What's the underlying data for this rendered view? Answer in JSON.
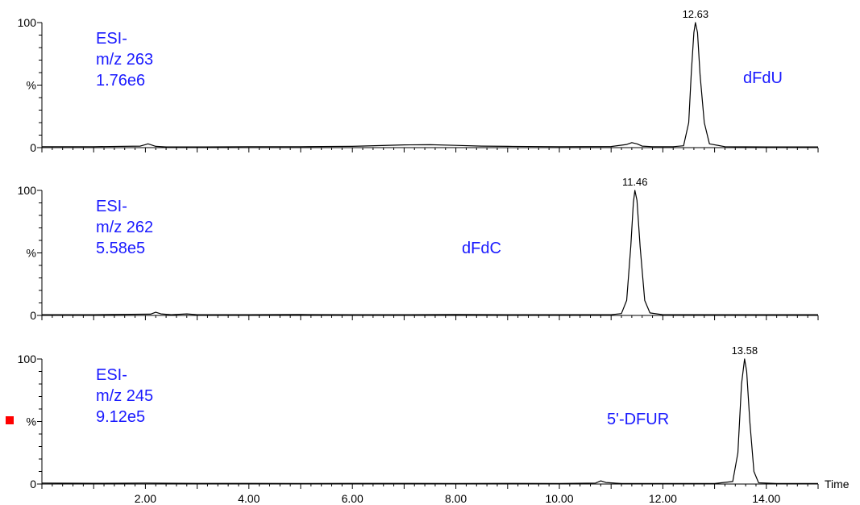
{
  "chart_data": {
    "type": "line",
    "x_axis": {
      "label": "Time",
      "xlim": [
        0,
        15
      ],
      "ticks": [
        2,
        4,
        6,
        8,
        10,
        12,
        14
      ],
      "tick_labels": [
        "2.00",
        "4.00",
        "6.00",
        "8.00",
        "10.00",
        "12.00",
        "14.00"
      ]
    },
    "panels": [
      {
        "ionization": "ESI-",
        "mz": "m/z 263",
        "intensity": "1.76e6",
        "compound": "dFdU",
        "y_ticks": [
          "0",
          "%",
          "100"
        ],
        "peak_label": "12.63",
        "peak": {
          "rt": 12.63,
          "height": 100
        },
        "series": {
          "x": [
            0.0,
            1.0,
            1.9,
            2.0,
            2.05,
            2.1,
            2.2,
            2.4,
            3.0,
            4.0,
            5.0,
            6.0,
            6.5,
            7.0,
            7.5,
            8.0,
            8.5,
            9.0,
            10.0,
            11.0,
            11.3,
            11.4,
            11.5,
            11.6,
            11.8,
            12.2,
            12.4,
            12.5,
            12.55,
            12.6,
            12.63,
            12.67,
            12.72,
            12.8,
            12.9,
            13.2,
            14.0,
            15.0
          ],
          "y": [
            0.8,
            0.8,
            1.2,
            2.4,
            3.0,
            2.4,
            1.0,
            0.6,
            0.6,
            0.8,
            0.8,
            1.0,
            1.6,
            2.2,
            2.3,
            1.8,
            1.2,
            1.0,
            0.8,
            0.9,
            2.5,
            4.0,
            3.0,
            1.2,
            0.8,
            0.8,
            1.5,
            20,
            60,
            92,
            100,
            92,
            58,
            20,
            3,
            0.8,
            0.6,
            0.6
          ]
        }
      },
      {
        "ionization": "ESI-",
        "mz": "m/z 262",
        "intensity": "5.58e5",
        "compound": "dFdC",
        "y_ticks": [
          "0",
          "%",
          "100"
        ],
        "peak_label": "11.46",
        "peak": {
          "rt": 11.46,
          "height": 100
        },
        "series": {
          "x": [
            0.0,
            1.0,
            2.1,
            2.2,
            2.3,
            2.5,
            2.8,
            3.0,
            4.0,
            5.0,
            6.0,
            7.0,
            8.0,
            9.0,
            10.0,
            11.0,
            11.2,
            11.3,
            11.38,
            11.43,
            11.46,
            11.5,
            11.56,
            11.65,
            11.75,
            12.0,
            13.0,
            14.0,
            15.0
          ],
          "y": [
            0.6,
            0.6,
            1.0,
            2.5,
            1.2,
            0.6,
            1.2,
            0.6,
            0.6,
            0.7,
            0.6,
            0.6,
            0.7,
            0.6,
            0.6,
            0.6,
            1.5,
            12,
            55,
            90,
            100,
            92,
            55,
            12,
            2,
            0.6,
            0.6,
            0.6,
            0.6
          ]
        }
      },
      {
        "ionization": "ESI-",
        "mz": "m/z 245",
        "intensity": "9.12e5",
        "compound": "5'-DFUR",
        "y_ticks": [
          "0",
          "%",
          "100"
        ],
        "peak_label": "13.58",
        "peak": {
          "rt": 13.58,
          "height": 100
        },
        "series": {
          "x": [
            0.0,
            1.0,
            2.0,
            3.0,
            4.0,
            5.0,
            6.0,
            7.0,
            8.0,
            9.0,
            10.0,
            10.7,
            10.8,
            10.9,
            11.2,
            12.0,
            13.0,
            13.35,
            13.45,
            13.52,
            13.58,
            13.62,
            13.68,
            13.76,
            13.85,
            14.2,
            15.0
          ],
          "y": [
            0.8,
            0.6,
            0.8,
            0.5,
            0.5,
            0.4,
            0.5,
            0.5,
            0.4,
            0.5,
            0.4,
            0.8,
            2.5,
            1.2,
            0.4,
            0.4,
            0.4,
            2,
            25,
            80,
            100,
            90,
            50,
            10,
            1,
            0.4,
            0.4
          ]
        }
      }
    ]
  }
}
